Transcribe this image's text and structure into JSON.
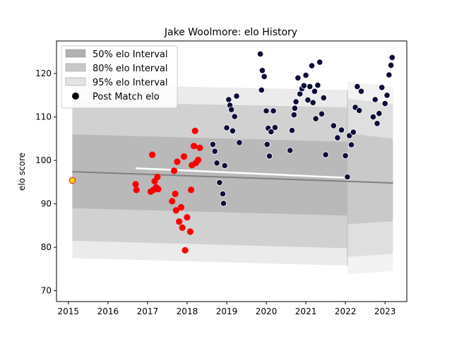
{
  "chart_data": {
    "type": "scatter",
    "title": "Jake Woolmore: elo History",
    "xlabel": "",
    "ylabel": "elo score",
    "xlim": [
      2014.7,
      2023.55
    ],
    "ylim": [
      67.5,
      127.5
    ],
    "xticks": [
      2015,
      2016,
      2017,
      2018,
      2019,
      2020,
      2021,
      2022,
      2023
    ],
    "yticks": [
      70,
      80,
      90,
      100,
      110,
      120
    ],
    "grid": false,
    "legend_position": "top-left",
    "legend": [
      {
        "label": "50% elo Interval",
        "color": "#a9a9a9"
      },
      {
        "label": "80% elo Interval",
        "color": "#c0c0c0"
      },
      {
        "label": "95% elo Interval",
        "color": "#dcdcdc"
      },
      {
        "label": "Post Match elo",
        "color": "#000000"
      }
    ],
    "colors": {
      "past_points": "#ff0000",
      "recent_points": "#0d0d3a",
      "initial_point": "#ffd700",
      "initial_edge": "#dd3333",
      "mean_line": "#808080",
      "highlight_line": "#ffffff",
      "band50": "#b0b0b0",
      "band80": "#c8c8c8",
      "band95": "#e4e4e4"
    },
    "initial_point": {
      "x": 2015.1,
      "y": 95.4
    },
    "bands": {
      "x_start": 2015.1,
      "x_split": 2022.05,
      "x_end": 2023.2,
      "mean_start": 97.4,
      "mean_end": 94.8,
      "band50": {
        "upper_start": 106.0,
        "upper_end": 104.0,
        "lower_start": 89.0,
        "lower_end": 87.0
      },
      "band80": {
        "upper_start": 113.5,
        "upper_end": 112.0,
        "lower_start": 81.5,
        "lower_end": 79.5
      },
      "band95": {
        "upper_start": 117.5,
        "upper_end": 116.0,
        "lower_start": 77.5,
        "lower_end": 75.5
      }
    },
    "series": [
      {
        "name": "",
        "group": "past",
        "x": [
          2016.7,
          2016.72,
          2017.08,
          2017.12,
          2017.15,
          2017.18,
          2017.22,
          2017.25,
          2017.27,
          2017.62,
          2017.67,
          2017.7,
          2017.72,
          2017.75,
          2017.8,
          2017.85,
          2017.88,
          2017.92,
          2017.95,
          2018.0,
          2018.08,
          2018.1,
          2018.12,
          2018.17,
          2018.2,
          2018.22,
          2018.28,
          2018.32
        ],
        "y": [
          94.5,
          93.2,
          92.8,
          101.3,
          93.2,
          95.2,
          93.8,
          96.2,
          93.4,
          90.6,
          97.6,
          92.3,
          88.5,
          99.7,
          85.9,
          89.2,
          84.5,
          100.9,
          79.3,
          86.9,
          83.6,
          93.2,
          98.9,
          103.3,
          106.8,
          99.4,
          100.1,
          102.9
        ]
      },
      {
        "name": "",
        "group": "recent",
        "x": [
          2018.65,
          2018.7,
          2018.75,
          2018.82,
          2018.9,
          2018.92,
          2018.95,
          2019.0,
          2019.05,
          2019.08,
          2019.12,
          2019.15,
          2019.2,
          2019.25,
          2019.32,
          2019.85,
          2019.88,
          2019.9,
          2019.95,
          2020.0,
          2020.02,
          2020.05,
          2020.08,
          2020.12,
          2020.18,
          2020.22,
          2020.6,
          2020.65,
          2020.7,
          2020.72,
          2020.75,
          2020.8,
          2020.85,
          2020.9,
          2020.95,
          2021.0,
          2021.05,
          2021.1,
          2021.15,
          2021.18,
          2021.22,
          2021.25,
          2021.3,
          2021.35,
          2021.4,
          2021.45,
          2021.5,
          2021.7,
          2021.8,
          2021.9,
          2022.0,
          2022.05,
          2022.1,
          2022.15,
          2022.2,
          2022.25,
          2022.3,
          2022.35,
          2022.4,
          2022.7,
          2022.75,
          2022.8,
          2022.85,
          2022.92,
          2023.0,
          2023.05,
          2023.1,
          2023.15,
          2023.18
        ],
        "y": [
          103.7,
          102.1,
          99.4,
          94.9,
          92.3,
          90.1,
          98.8,
          107.5,
          114.0,
          112.7,
          111.7,
          106.8,
          110.1,
          114.8,
          104.1,
          124.5,
          116.2,
          120.7,
          119.3,
          111.4,
          103.7,
          107.4,
          101.0,
          106.6,
          111.4,
          107.6,
          102.3,
          106.9,
          110.5,
          112.0,
          113.5,
          119.0,
          115.3,
          116.5,
          117.2,
          119.6,
          113.9,
          117.0,
          121.8,
          113.3,
          115.9,
          109.6,
          117.3,
          122.6,
          110.7,
          114.4,
          101.3,
          108.0,
          105.2,
          107.0,
          101.1,
          96.2,
          105.7,
          103.6,
          106.5,
          112.2,
          117.0,
          111.5,
          115.9,
          110.0,
          114.0,
          108.5,
          110.8,
          116.8,
          113.1,
          115.0,
          119.7,
          121.9,
          123.7
        ]
      }
    ]
  }
}
